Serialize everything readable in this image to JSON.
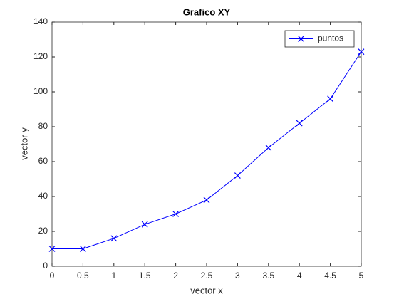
{
  "chart_data": {
    "type": "line",
    "title": "Grafico XY",
    "xlabel": "vector x",
    "ylabel": "vector y",
    "x": [
      0,
      0.5,
      1,
      1.5,
      2,
      2.5,
      3,
      3.5,
      4,
      4.5,
      5
    ],
    "series": [
      {
        "name": "puntos",
        "color": "#0000ff",
        "values": [
          10,
          10,
          16,
          24,
          30,
          38,
          52,
          68,
          82,
          96,
          123
        ]
      }
    ],
    "xlim": [
      0,
      5
    ],
    "xticks": [
      0,
      0.5,
      1,
      1.5,
      2,
      2.5,
      3,
      3.5,
      4,
      4.5,
      5
    ],
    "ylim": [
      0,
      140
    ],
    "yticks": [
      0,
      20,
      40,
      60,
      80,
      100,
      120,
      140
    ],
    "grid": false,
    "legend": "northeast",
    "marker": "x"
  }
}
